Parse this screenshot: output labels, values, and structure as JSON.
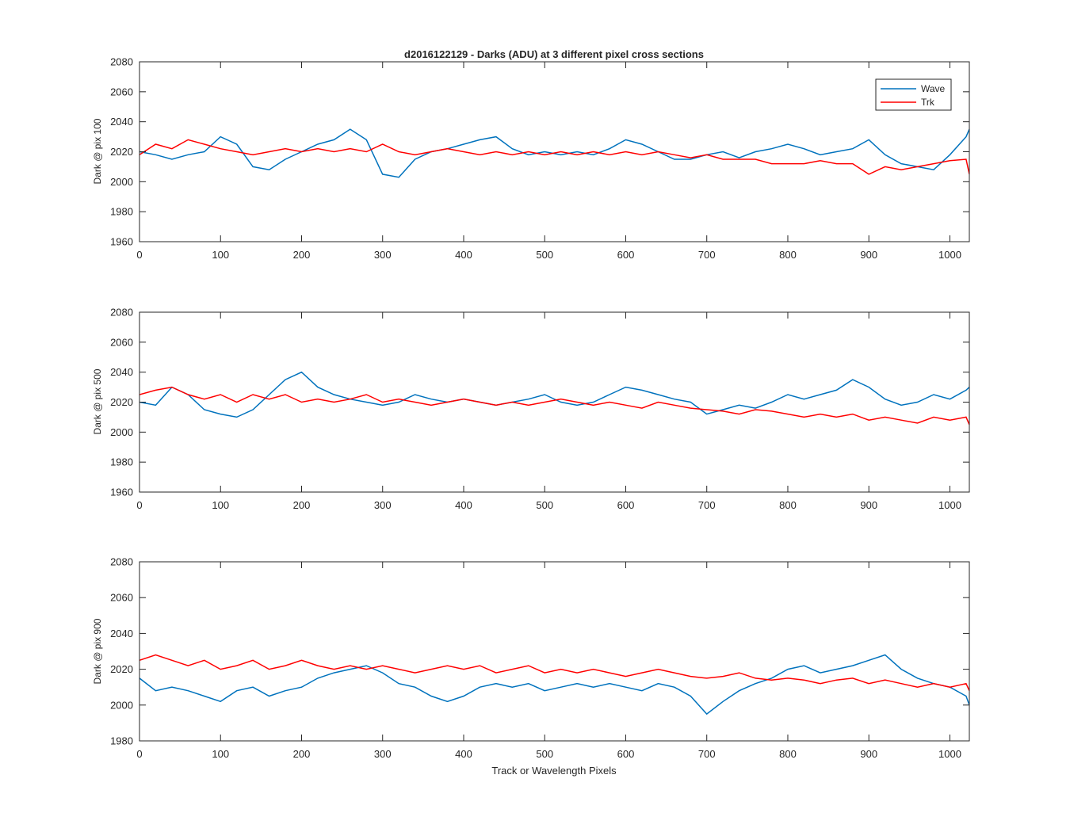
{
  "figure": {
    "title": "d2016122129 - Darks (ADU) at 3 different pixel cross sections",
    "xlabel": "Track or Wavelength Pixels"
  },
  "colors": {
    "wave": "#0072BD",
    "trk": "#FF0000",
    "axis": "#262626",
    "background": "#FFFFFF"
  },
  "chart_data": [
    {
      "type": "line",
      "ylabel": "Dark @ pix 100",
      "xlim": [
        0,
        1024
      ],
      "ylim": [
        1960,
        2080
      ],
      "xticks": [
        0,
        100,
        200,
        300,
        400,
        500,
        600,
        700,
        800,
        900,
        1000
      ],
      "yticks": [
        1960,
        1980,
        2000,
        2020,
        2040,
        2060,
        2080
      ],
      "grid": false,
      "legend": {
        "position": "top-right",
        "entries": [
          "Wave",
          "Trk"
        ]
      },
      "series": [
        {
          "name": "Wave",
          "color": "#0072BD",
          "x": [
            0,
            20,
            40,
            60,
            80,
            100,
            120,
            140,
            160,
            180,
            200,
            220,
            240,
            260,
            280,
            300,
            320,
            340,
            360,
            380,
            400,
            420,
            440,
            460,
            480,
            500,
            520,
            540,
            560,
            580,
            600,
            620,
            640,
            660,
            680,
            700,
            720,
            740,
            760,
            780,
            800,
            820,
            840,
            860,
            880,
            900,
            920,
            940,
            960,
            980,
            1000,
            1020,
            1024
          ],
          "y": [
            2020,
            2018,
            2015,
            2018,
            2020,
            2030,
            2025,
            2010,
            2008,
            2015,
            2020,
            2025,
            2028,
            2035,
            2028,
            2005,
            2003,
            2015,
            2020,
            2022,
            2025,
            2028,
            2030,
            2022,
            2018,
            2020,
            2018,
            2020,
            2018,
            2022,
            2028,
            2025,
            2020,
            2015,
            2015,
            2018,
            2020,
            2016,
            2020,
            2022,
            2025,
            2022,
            2018,
            2020,
            2022,
            2028,
            2018,
            2012,
            2010,
            2008,
            2018,
            2030,
            2035
          ]
        },
        {
          "name": "Trk",
          "color": "#FF0000",
          "x": [
            0,
            20,
            40,
            60,
            80,
            100,
            120,
            140,
            160,
            180,
            200,
            220,
            240,
            260,
            280,
            300,
            320,
            340,
            360,
            380,
            400,
            420,
            440,
            460,
            480,
            500,
            520,
            540,
            560,
            580,
            600,
            620,
            640,
            660,
            680,
            700,
            720,
            740,
            760,
            780,
            800,
            820,
            840,
            860,
            880,
            900,
            920,
            940,
            960,
            980,
            1000,
            1020,
            1024
          ],
          "y": [
            2018,
            2025,
            2022,
            2028,
            2025,
            2022,
            2020,
            2018,
            2020,
            2022,
            2020,
            2022,
            2020,
            2022,
            2020,
            2025,
            2020,
            2018,
            2020,
            2022,
            2020,
            2018,
            2020,
            2018,
            2020,
            2018,
            2020,
            2018,
            2020,
            2018,
            2020,
            2018,
            2020,
            2018,
            2016,
            2018,
            2015,
            2015,
            2015,
            2012,
            2012,
            2012,
            2014,
            2012,
            2012,
            2005,
            2010,
            2008,
            2010,
            2012,
            2014,
            2015,
            2005
          ]
        }
      ]
    },
    {
      "type": "line",
      "ylabel": "Dark @ pix 500",
      "xlim": [
        0,
        1024
      ],
      "ylim": [
        1960,
        2080
      ],
      "xticks": [
        0,
        100,
        200,
        300,
        400,
        500,
        600,
        700,
        800,
        900,
        1000
      ],
      "yticks": [
        1960,
        1980,
        2000,
        2020,
        2040,
        2060,
        2080
      ],
      "grid": false,
      "series": [
        {
          "name": "Wave",
          "color": "#0072BD",
          "x": [
            0,
            20,
            40,
            60,
            80,
            100,
            120,
            140,
            160,
            180,
            200,
            220,
            240,
            260,
            280,
            300,
            320,
            340,
            360,
            380,
            400,
            420,
            440,
            460,
            480,
            500,
            520,
            540,
            560,
            580,
            600,
            620,
            640,
            660,
            680,
            700,
            720,
            740,
            760,
            780,
            800,
            820,
            840,
            860,
            880,
            900,
            920,
            940,
            960,
            980,
            1000,
            1020,
            1024
          ],
          "y": [
            2020,
            2018,
            2030,
            2025,
            2015,
            2012,
            2010,
            2015,
            2025,
            2035,
            2040,
            2030,
            2025,
            2022,
            2020,
            2018,
            2020,
            2025,
            2022,
            2020,
            2022,
            2020,
            2018,
            2020,
            2022,
            2025,
            2020,
            2018,
            2020,
            2025,
            2030,
            2028,
            2025,
            2022,
            2020,
            2012,
            2015,
            2018,
            2016,
            2020,
            2025,
            2022,
            2025,
            2028,
            2035,
            2030,
            2022,
            2018,
            2020,
            2025,
            2022,
            2028,
            2030
          ]
        },
        {
          "name": "Trk",
          "color": "#FF0000",
          "x": [
            0,
            20,
            40,
            60,
            80,
            100,
            120,
            140,
            160,
            180,
            200,
            220,
            240,
            260,
            280,
            300,
            320,
            340,
            360,
            380,
            400,
            420,
            440,
            460,
            480,
            500,
            520,
            540,
            560,
            580,
            600,
            620,
            640,
            660,
            680,
            700,
            720,
            740,
            760,
            780,
            800,
            820,
            840,
            860,
            880,
            900,
            920,
            940,
            960,
            980,
            1000,
            1020,
            1024
          ],
          "y": [
            2025,
            2028,
            2030,
            2025,
            2022,
            2025,
            2020,
            2025,
            2022,
            2025,
            2020,
            2022,
            2020,
            2022,
            2025,
            2020,
            2022,
            2020,
            2018,
            2020,
            2022,
            2020,
            2018,
            2020,
            2018,
            2020,
            2022,
            2020,
            2018,
            2020,
            2018,
            2016,
            2020,
            2018,
            2016,
            2015,
            2014,
            2012,
            2015,
            2014,
            2012,
            2010,
            2012,
            2010,
            2012,
            2008,
            2010,
            2008,
            2006,
            2010,
            2008,
            2010,
            2005
          ]
        }
      ]
    },
    {
      "type": "line",
      "ylabel": "Dark @ pix 900",
      "xlabel": "Track or Wavelength Pixels",
      "xlim": [
        0,
        1024
      ],
      "ylim": [
        1980,
        2080
      ],
      "xticks": [
        0,
        100,
        200,
        300,
        400,
        500,
        600,
        700,
        800,
        900,
        1000
      ],
      "yticks": [
        1980,
        2000,
        2020,
        2040,
        2060,
        2080
      ],
      "grid": false,
      "series": [
        {
          "name": "Wave",
          "color": "#0072BD",
          "x": [
            0,
            20,
            40,
            60,
            80,
            100,
            120,
            140,
            160,
            180,
            200,
            220,
            240,
            260,
            280,
            300,
            320,
            340,
            360,
            380,
            400,
            420,
            440,
            460,
            480,
            500,
            520,
            540,
            560,
            580,
            600,
            620,
            640,
            660,
            680,
            700,
            720,
            740,
            760,
            780,
            800,
            820,
            840,
            860,
            880,
            900,
            920,
            940,
            960,
            980,
            1000,
            1020,
            1024
          ],
          "y": [
            2015,
            2008,
            2010,
            2008,
            2005,
            2002,
            2008,
            2010,
            2005,
            2008,
            2010,
            2015,
            2018,
            2020,
            2022,
            2018,
            2012,
            2010,
            2005,
            2002,
            2005,
            2010,
            2012,
            2010,
            2012,
            2008,
            2010,
            2012,
            2010,
            2012,
            2010,
            2008,
            2012,
            2010,
            2005,
            1995,
            2002,
            2008,
            2012,
            2015,
            2020,
            2022,
            2018,
            2020,
            2022,
            2025,
            2028,
            2020,
            2015,
            2012,
            2010,
            2005,
            2000
          ]
        },
        {
          "name": "Trk",
          "color": "#FF0000",
          "x": [
            0,
            20,
            40,
            60,
            80,
            100,
            120,
            140,
            160,
            180,
            200,
            220,
            240,
            260,
            280,
            300,
            320,
            340,
            360,
            380,
            400,
            420,
            440,
            460,
            480,
            500,
            520,
            540,
            560,
            580,
            600,
            620,
            640,
            660,
            680,
            700,
            720,
            740,
            760,
            780,
            800,
            820,
            840,
            860,
            880,
            900,
            920,
            940,
            960,
            980,
            1000,
            1020,
            1024
          ],
          "y": [
            2025,
            2028,
            2025,
            2022,
            2025,
            2020,
            2022,
            2025,
            2020,
            2022,
            2025,
            2022,
            2020,
            2022,
            2020,
            2022,
            2020,
            2018,
            2020,
            2022,
            2020,
            2022,
            2018,
            2020,
            2022,
            2018,
            2020,
            2018,
            2020,
            2018,
            2016,
            2018,
            2020,
            2018,
            2016,
            2015,
            2016,
            2018,
            2015,
            2014,
            2015,
            2014,
            2012,
            2014,
            2015,
            2012,
            2014,
            2012,
            2010,
            2012,
            2010,
            2012,
            2008
          ]
        }
      ]
    }
  ]
}
